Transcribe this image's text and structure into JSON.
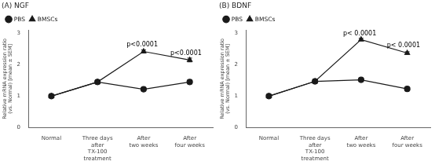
{
  "chart_data": [
    {
      "type": "line",
      "title": "(A) NGF",
      "categories": [
        "Normal",
        "Three days\nafter\nTX-100\ntreatment",
        "After\ntwo weeks",
        "After\nfour weeks"
      ],
      "y_label": "Relative mRNA expression ratio\n(vs. Normal) [mean ± SEM]",
      "series": [
        {
          "name": "PBS",
          "color": "#1a1a1a",
          "marker": "circle",
          "values": [
            1.0,
            1.45,
            1.22,
            1.45
          ],
          "errors": [
            0.03,
            0.06,
            0.05,
            0.06
          ]
        },
        {
          "name": "BMSCs",
          "color": "#1a1a1a",
          "marker": "triangle",
          "values": [
            1.0,
            1.45,
            2.42,
            2.15
          ],
          "errors": [
            0.03,
            0.06,
            0.05,
            0.06
          ]
        }
      ],
      "annotations": [
        {
          "x": 1.97,
          "y": 2.53,
          "text": "p<0.0001"
        },
        {
          "x": 2.92,
          "y": 2.27,
          "text": "p<0.0001"
        }
      ],
      "ylim": [
        0,
        3.1
      ],
      "yticks": [
        0,
        1,
        2,
        3
      ],
      "grid": false,
      "legend": "upper left"
    },
    {
      "type": "line",
      "title": "(B) BDNF",
      "categories": [
        "Normal",
        "Three days\nafter\nTX-100\ntreatment",
        "After\ntwo weeks",
        "After\nfour weeks"
      ],
      "y_label": "Relative mRNA expression ratio\n(vs. Normal) [mean ± SEM]",
      "series": [
        {
          "name": "PBS",
          "color": "#1a1a1a",
          "marker": "circle",
          "values": [
            1.0,
            1.47,
            1.52,
            1.23
          ],
          "errors": [
            0.03,
            0.06,
            0.05,
            0.04
          ]
        },
        {
          "name": "BMSCs",
          "color": "#1a1a1a",
          "marker": "triangle",
          "values": [
            1.0,
            1.47,
            2.8,
            2.37
          ],
          "errors": [
            0.03,
            0.06,
            0.04,
            0.04
          ]
        }
      ],
      "annotations": [
        {
          "x": 1.97,
          "y": 2.88,
          "text": "p< 0.0001"
        },
        {
          "x": 2.92,
          "y": 2.5,
          "text": "p< 0.0001"
        }
      ],
      "ylim": [
        0,
        3.1
      ],
      "yticks": [
        0,
        1,
        2,
        3
      ],
      "grid": false,
      "legend": "upper left"
    }
  ]
}
